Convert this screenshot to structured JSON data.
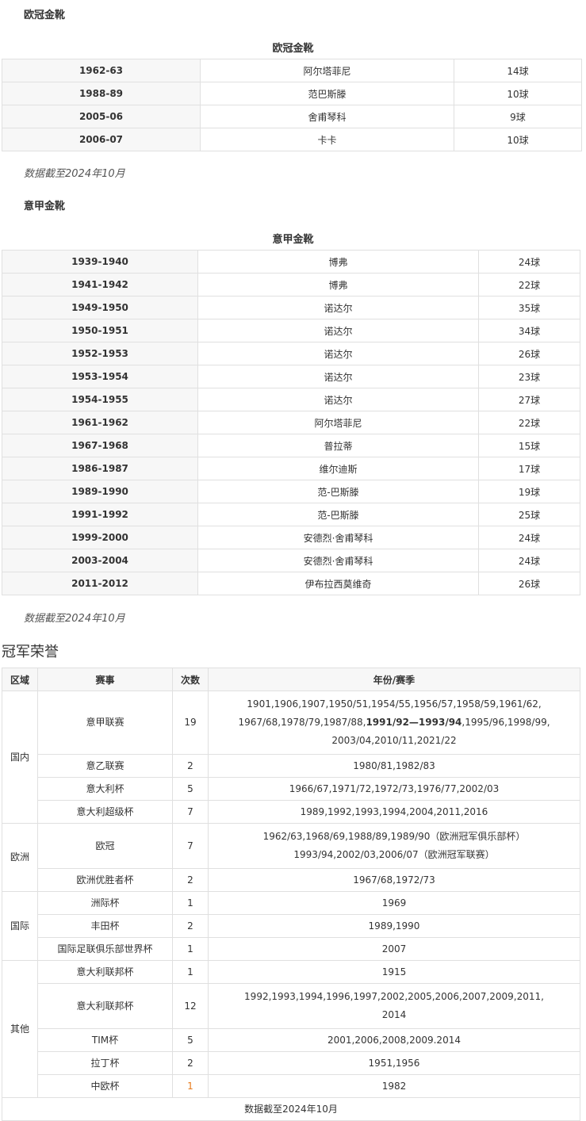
{
  "ucl_boot": {
    "heading": "欧冠金靴",
    "caption": "欧冠金靴",
    "rows": [
      [
        "1962-63",
        "阿尔塔菲尼",
        "14球"
      ],
      [
        "1988-89",
        "范巴斯滕",
        "10球"
      ],
      [
        "2005-06",
        "舍甫琴科",
        "9球"
      ],
      [
        "2006-07",
        "卡卡",
        "10球"
      ]
    ],
    "note": "数据截至2024年10月"
  },
  "seriea_boot": {
    "heading": "意甲金靴",
    "caption": "意甲金靴",
    "rows": [
      [
        "1939-1940",
        "博弗",
        "24球"
      ],
      [
        "1941-1942",
        "博弗",
        "22球"
      ],
      [
        "1949-1950",
        "诺达尔",
        "35球"
      ],
      [
        "1950-1951",
        "诺达尔",
        "34球"
      ],
      [
        "1952-1953",
        "诺达尔",
        "26球"
      ],
      [
        "1953-1954",
        "诺达尔",
        "23球"
      ],
      [
        "1954-1955",
        "诺达尔",
        "27球"
      ],
      [
        "1961-1962",
        "阿尔塔菲尼",
        "22球"
      ],
      [
        "1967-1968",
        "普拉蒂",
        "15球"
      ],
      [
        "1986-1987",
        "维尔迪斯",
        "17球"
      ],
      [
        "1989-1990",
        "范-巴斯滕",
        "19球"
      ],
      [
        "1991-1992",
        "范-巴斯滕",
        "25球"
      ],
      [
        "1999-2000",
        "安德烈·舍甫琴科",
        "24球"
      ],
      [
        "2003-2004",
        "安德烈·舍甫琴科",
        "24球"
      ],
      [
        "2011-2012",
        "伊布拉西莫维奇",
        "26球"
      ]
    ],
    "note": "数据截至2024年10月"
  },
  "honors": {
    "heading": "冠军荣誉",
    "headers": [
      "区域",
      "赛事",
      "次数",
      "年份/赛季"
    ],
    "groups": [
      {
        "region": "国内",
        "rows": [
          {
            "event": "意甲联赛",
            "count": "19",
            "lines": [
              "1901,1906,1907,1950/51,1954/55,1956/57,1958/59,1961/62,",
              "1967/68,1978/79,1987/88,",
              "1991/92—1993/94",
              ",1995/96,1998/99,",
              "2003/04,2010/11,2021/22"
            ]
          },
          {
            "event": "意乙联赛",
            "count": "2",
            "lines": [
              "1980/81,1982/83"
            ]
          },
          {
            "event": "意大利杯",
            "count": "5",
            "lines": [
              "1966/67,1971/72,1972/73,1976/77,2002/03"
            ]
          },
          {
            "event": "意大利超级杯",
            "count": "7",
            "lines": [
              "1989,1992,1993,1994,2004,2011,2016"
            ]
          }
        ]
      },
      {
        "region": "欧洲",
        "rows": [
          {
            "event": "欧冠",
            "count": "7",
            "lines": [
              "1962/63,1968/69,1988/89,1989/90（欧洲冠军俱乐部杯）",
              "1993/94,2002/03,2006/07（欧洲冠军联赛）"
            ]
          },
          {
            "event": "欧洲优胜者杯",
            "count": "2",
            "lines": [
              "1967/68,1972/73"
            ]
          }
        ]
      },
      {
        "region": "国际",
        "rows": [
          {
            "event": "洲际杯",
            "count": "1",
            "lines": [
              "1969"
            ]
          },
          {
            "event": "丰田杯",
            "count": "2",
            "lines": [
              "1989,1990"
            ]
          },
          {
            "event": "国际足联俱乐部世界杯",
            "count": "1",
            "lines": [
              "2007"
            ]
          }
        ]
      },
      {
        "region": "其他",
        "rows": [
          {
            "event": "意大利联邦杯",
            "count": "1",
            "lines": [
              "1915"
            ]
          },
          {
            "event": "意大利联邦杯",
            "count": "12",
            "lines": [
              "1992,1993,1994,1996,1997,2002,2005,2006,2007,2009,2011,",
              "2014"
            ]
          },
          {
            "event": "TIM杯",
            "count": "5",
            "lines": [
              "2001,2006,2008,2009.2014"
            ]
          },
          {
            "event": "拉丁杯",
            "count": "2",
            "lines": [
              "1951,1956"
            ]
          },
          {
            "event": "中欧杯",
            "count": "1",
            "lines": [
              "1982"
            ]
          }
        ]
      }
    ],
    "footer": "数据截至2024年10月"
  }
}
